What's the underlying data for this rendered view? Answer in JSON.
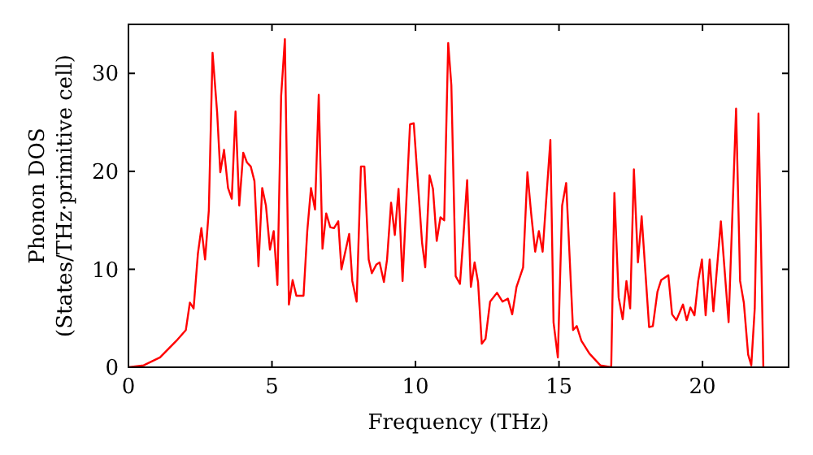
{
  "chart_data": {
    "type": "line",
    "xlabel": "Frequency (THz)",
    "ylabel": "Phonon DOS\n(States/THz·primitive cell)",
    "xlim": [
      0,
      23
    ],
    "ylim": [
      0,
      35
    ],
    "xticks": [
      0,
      5,
      10,
      15,
      20
    ],
    "yticks": [
      0,
      10,
      20,
      30
    ],
    "grid": false,
    "series": [
      {
        "color": "#ff0000",
        "x": [
          0,
          0.53,
          1.1,
          1.67,
          2.0,
          2.14,
          2.27,
          2.42,
          2.54,
          2.67,
          2.8,
          2.93,
          3.09,
          3.2,
          3.33,
          3.47,
          3.6,
          3.73,
          3.86,
          4.0,
          4.13,
          4.26,
          4.39,
          4.53,
          4.66,
          4.79,
          4.93,
          5.06,
          5.19,
          5.32,
          5.45,
          5.59,
          5.72,
          5.85,
          6.1,
          6.23,
          6.36,
          6.5,
          6.63,
          6.76,
          6.89,
          7.03,
          7.16,
          7.31,
          7.42,
          7.69,
          7.8,
          7.95,
          8.1,
          8.22,
          8.37,
          8.48,
          8.64,
          8.75,
          8.9,
          9.01,
          9.15,
          9.28,
          9.41,
          9.55,
          9.81,
          9.94,
          10.23,
          10.34,
          10.49,
          10.61,
          10.74,
          10.87,
          11.0,
          11.14,
          11.25,
          11.4,
          11.55,
          11.66,
          11.8,
          11.93,
          12.06,
          12.18,
          12.31,
          12.44,
          12.6,
          12.84,
          13.03,
          13.22,
          13.37,
          13.52,
          13.75,
          13.9,
          14.03,
          14.17,
          14.3,
          14.43,
          14.7,
          14.81,
          14.96,
          15.11,
          15.25,
          15.49,
          15.62,
          15.78,
          16.06,
          16.44,
          16.82,
          16.93,
          17.08,
          17.22,
          17.35,
          17.48,
          17.61,
          17.75,
          17.88,
          18.14,
          18.27,
          18.43,
          18.56,
          18.81,
          18.94,
          19.09,
          19.32,
          19.45,
          19.58,
          19.72,
          19.85,
          19.98,
          20.11,
          20.25,
          20.38,
          20.64,
          20.91,
          21.17,
          21.31,
          21.44,
          21.59,
          21.7,
          21.82,
          21.95,
          22.12
        ],
        "values": [
          0,
          0.2,
          1,
          2.7,
          3.8,
          6.6,
          6,
          11.6,
          14.2,
          11,
          16,
          32.1,
          26,
          19.9,
          22.2,
          18.3,
          17.2,
          26.1,
          16.5,
          21.9,
          20.9,
          20.5,
          19,
          10.3,
          18.3,
          16.5,
          12,
          13.9,
          8.4,
          27.7,
          33.5,
          6.4,
          8.9,
          7.3,
          7.3,
          13.9,
          18.3,
          16.1,
          27.8,
          12.1,
          15.7,
          14.3,
          14.2,
          14.9,
          10,
          13.6,
          8.8,
          6.7,
          20.5,
          20.5,
          11,
          9.6,
          10.5,
          10.7,
          8.7,
          11,
          16.8,
          13.5,
          18.2,
          8.8,
          24.8,
          24.9,
          12.7,
          10.2,
          19.6,
          18.2,
          12.9,
          15.3,
          15,
          33.1,
          28.8,
          9.3,
          8.5,
          12.9,
          19.1,
          8.2,
          10.7,
          8.7,
          2.4,
          2.9,
          6.7,
          7.6,
          6.7,
          7,
          5.4,
          8.2,
          10.2,
          19.9,
          15.7,
          11.8,
          13.9,
          11.8,
          23.2,
          4.6,
          1,
          16.5,
          18.8,
          3.8,
          4.2,
          2.7,
          1.4,
          0.2,
          0,
          17.8,
          7.1,
          4.9,
          8.8,
          6,
          20.2,
          10.7,
          15.4,
          4.1,
          4.2,
          7.7,
          8.9,
          9.4,
          5.4,
          4.8,
          6.4,
          4.8,
          6.1,
          5.3,
          8.8,
          11,
          5.3,
          11,
          5.7,
          14.9,
          4.6,
          26.4,
          8.8,
          6.6,
          1.3,
          0.2,
          6,
          25.9,
          0
        ]
      }
    ]
  }
}
